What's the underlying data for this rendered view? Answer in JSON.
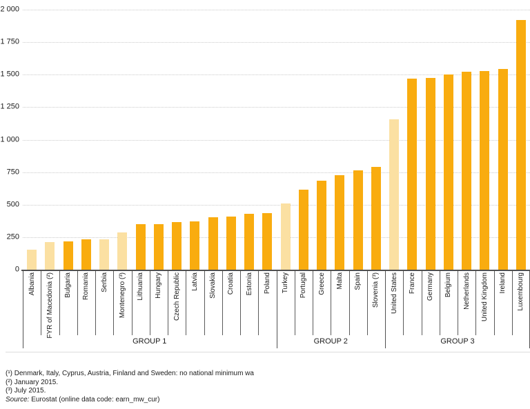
{
  "chart_data": {
    "type": "bar",
    "title": "",
    "grid": "horizontal-dotted",
    "legend_position": "none",
    "y_axis": {
      "min": 0,
      "max": 2000,
      "tick_interval": 250,
      "tick_labels": [
        "0",
        "250",
        "500",
        "750",
        "1 000",
        "1 250",
        "1 500",
        "1 750",
        "2 000"
      ]
    },
    "bar_colors": {
      "eu_member": "#f9ac0f",
      "non_eu": "#fbe0a2"
    },
    "groups": [
      {
        "label": "GROUP 1",
        "countries": [
          {
            "name": "Albania",
            "value": 156,
            "color_key": "non_eu"
          },
          {
            "name": "FYR of Macedonia (²)",
            "value": 213,
            "color_key": "non_eu"
          },
          {
            "name": "Bulgaria",
            "value": 215,
            "color_key": "eu_member"
          },
          {
            "name": "Romania",
            "value": 232,
            "color_key": "eu_member"
          },
          {
            "name": "Serbia",
            "value": 235,
            "color_key": "non_eu"
          },
          {
            "name": "Montenegro (³)",
            "value": 288,
            "color_key": "non_eu"
          },
          {
            "name": "Lithuania",
            "value": 350,
            "color_key": "eu_member"
          },
          {
            "name": "Hungary",
            "value": 351,
            "color_key": "eu_member"
          },
          {
            "name": "Czech Republic",
            "value": 366,
            "color_key": "eu_member"
          },
          {
            "name": "Latvia",
            "value": 370,
            "color_key": "eu_member"
          },
          {
            "name": "Slovakia",
            "value": 405,
            "color_key": "eu_member"
          },
          {
            "name": "Croatia",
            "value": 408,
            "color_key": "eu_member"
          },
          {
            "name": "Estonia",
            "value": 430,
            "color_key": "eu_member"
          },
          {
            "name": "Poland",
            "value": 434,
            "color_key": "eu_member"
          }
        ]
      },
      {
        "label": "GROUP 2",
        "countries": [
          {
            "name": "Turkey",
            "value": 511,
            "color_key": "non_eu"
          },
          {
            "name": "Portugal",
            "value": 618,
            "color_key": "eu_member"
          },
          {
            "name": "Greece",
            "value": 684,
            "color_key": "eu_member"
          },
          {
            "name": "Malta",
            "value": 728,
            "color_key": "eu_member"
          },
          {
            "name": "Spain",
            "value": 764,
            "color_key": "eu_member"
          },
          {
            "name": "Slovenia (³)",
            "value": 791,
            "color_key": "eu_member"
          }
        ]
      },
      {
        "label": "GROUP 3",
        "countries": [
          {
            "name": "United States",
            "value": 1157,
            "color_key": "non_eu"
          },
          {
            "name": "France",
            "value": 1467,
            "color_key": "eu_member"
          },
          {
            "name": "Germany",
            "value": 1473,
            "color_key": "eu_member"
          },
          {
            "name": "Belgium",
            "value": 1502,
            "color_key": "eu_member"
          },
          {
            "name": "Netherlands",
            "value": 1525,
            "color_key": "eu_member"
          },
          {
            "name": "United Kingdom",
            "value": 1529,
            "color_key": "eu_member"
          },
          {
            "name": "Ireland",
            "value": 1546,
            "color_key": "eu_member"
          },
          {
            "name": "Luxembourg",
            "value": 1923,
            "color_key": "eu_member"
          }
        ]
      }
    ]
  },
  "footnotes": [
    "(¹) Denmark, Italy, Cyprus, Austria, Finland and Sweden: no national minimum wa",
    "(²) January 2015.",
    "(³) July 2015."
  ],
  "source": {
    "label": "Source:",
    "text": "Eurostat (online data code: earn_mw_cur)"
  }
}
